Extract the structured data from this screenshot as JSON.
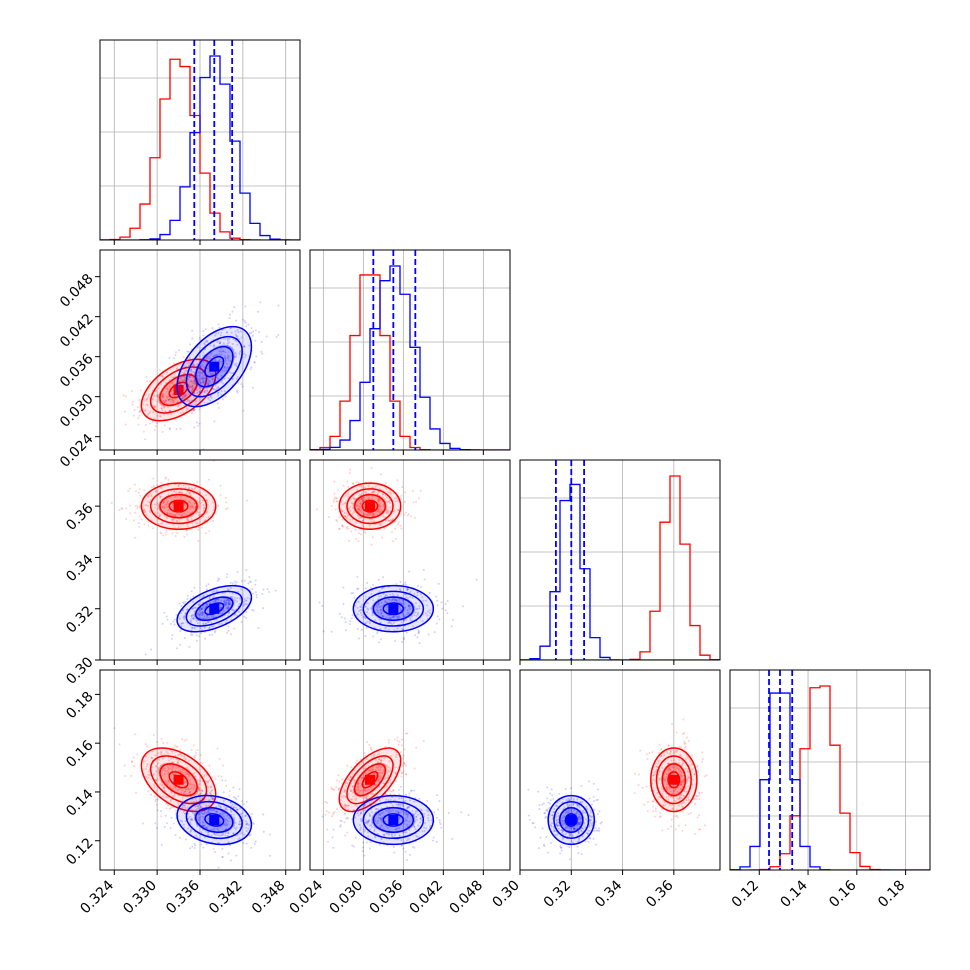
{
  "colors": {
    "red": "#ff0000",
    "blue": "#0000ff",
    "grid": "#b0b0b0",
    "axes": "#000000"
  },
  "chart_data": {
    "type": "corner",
    "grid": true,
    "variables": [
      {
        "range": [
          0.322,
          0.35
        ],
        "ticks": [
          "0.324",
          "0.330",
          "0.336",
          "0.342",
          "0.348"
        ]
      },
      {
        "range": [
          0.022,
          0.052
        ],
        "ticks": [
          "0.024",
          "0.030",
          "0.036",
          "0.042",
          "0.048"
        ]
      },
      {
        "range": [
          0.3,
          0.378
        ],
        "ticks": [
          "0.30",
          "0.32",
          "0.34",
          "0.36"
        ]
      },
      {
        "range": [
          0.108,
          0.19
        ],
        "ticks": [
          "0.12",
          "0.14",
          "0.16",
          "0.18"
        ]
      }
    ],
    "series": [
      {
        "color": "red",
        "means": [
          0.333,
          0.031,
          0.36,
          0.145
        ],
        "sds": [
          0.0026,
          0.0023,
          0.0045,
          0.0065
        ],
        "corr": {
          "0-1": 0.5,
          "0-2": 0.0,
          "0-3": -0.45,
          "1-2": 0.0,
          "1-3": 0.6,
          "2-3": 0.0
        }
      },
      {
        "color": "blue",
        "means": [
          0.338,
          0.0345,
          0.32,
          0.1285
        ],
        "sds": [
          0.0026,
          0.003,
          0.0045,
          0.005
        ],
        "corr": {
          "0-1": 0.5,
          "0-2": 0.5,
          "0-3": -0.2,
          "1-2": 0.0,
          "1-3": 0.0,
          "2-3": 0.0
        }
      }
    ],
    "quantile_lines": [
      [
        0.3352,
        0.338,
        0.3405
      ],
      [
        0.0315,
        0.0345,
        0.0378
      ],
      [
        0.314,
        0.32,
        0.325
      ],
      [
        0.124,
        0.1285,
        0.1335
      ]
    ]
  }
}
